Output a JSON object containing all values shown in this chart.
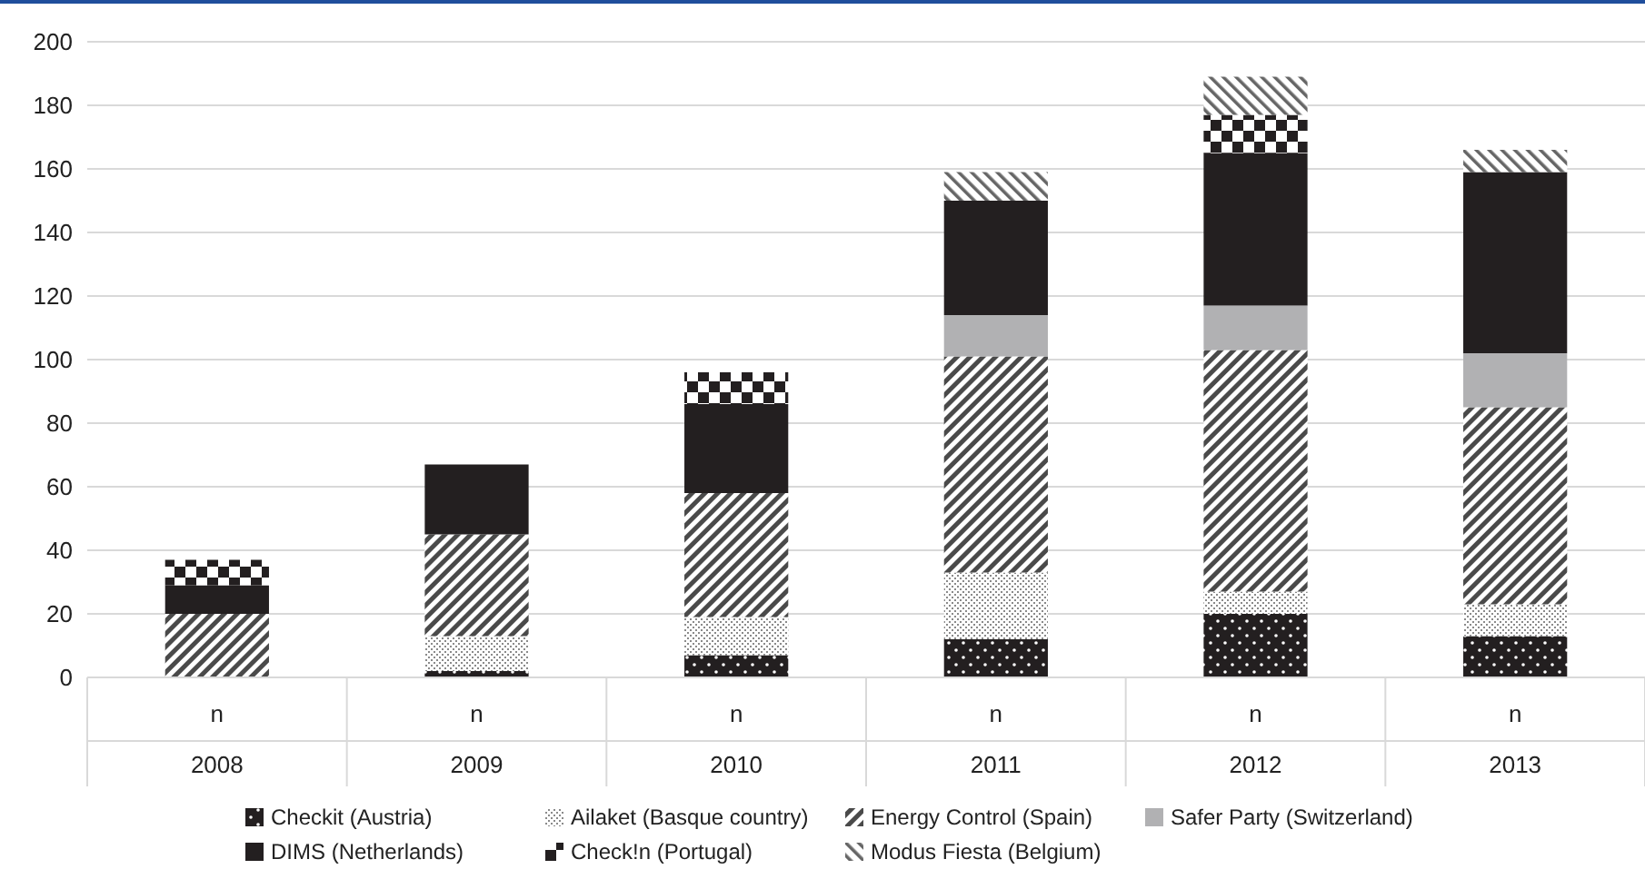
{
  "chart_data": {
    "type": "bar",
    "stacked": true,
    "categories": [
      "2008",
      "2009",
      "2010",
      "2011",
      "2012",
      "2013"
    ],
    "series": [
      {
        "name": "Checkit (Austria)",
        "color": "#231f20",
        "values": [
          0,
          2,
          7,
          12,
          20,
          13
        ]
      },
      {
        "name": "Ailaket (Basque country)",
        "color": "#8a8a8a",
        "values": [
          0,
          11,
          12,
          21,
          7,
          10
        ]
      },
      {
        "name": "Energy Control (Spain)",
        "color": "#4a4a4a",
        "values": [
          20,
          32,
          39,
          68,
          76,
          62
        ]
      },
      {
        "name": "Safer Party (Switzerland)",
        "color": "#b1b1b3",
        "values": [
          0,
          0,
          0,
          13,
          14,
          17
        ]
      },
      {
        "name": "DIMS (Netherlands)",
        "color": "#231f20",
        "values": [
          9,
          22,
          28,
          36,
          48,
          57
        ]
      },
      {
        "name": "Check!n (Portugal)",
        "color": "#231f20",
        "values": [
          8,
          0,
          10,
          0,
          12,
          0
        ]
      },
      {
        "name": "Modus Fiesta (Belgium)",
        "color": "#666666",
        "values": [
          0,
          0,
          0,
          9,
          12,
          7
        ]
      }
    ],
    "ylim": [
      0,
      200
    ],
    "yticks": [
      0,
      20,
      40,
      60,
      80,
      100,
      120,
      140,
      160,
      180,
      200
    ],
    "grid": "y",
    "legend": "bottom",
    "annotations": [
      "n",
      "n",
      "n",
      "n",
      "n",
      "n"
    ]
  }
}
